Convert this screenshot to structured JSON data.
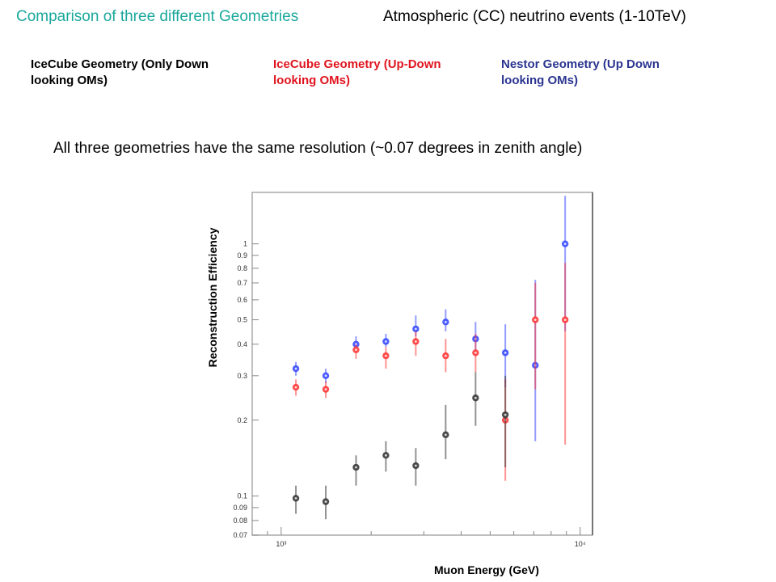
{
  "header": {
    "title_left": "Comparison of three different Geometries",
    "title_right": "Atmospheric (CC) neutrino events (1-10TeV)",
    "title_left_color": "#1aa89c",
    "title_right_color": "#000000"
  },
  "legend": [
    {
      "label": "IceCube Geometry (Only Down looking OMs)",
      "color": "#000000"
    },
    {
      "label": "IceCube Geometry (Up-Down looking OMs)",
      "color": "#e0141e"
    },
    {
      "label": "Nestor Geometry (Up Down looking OMs)",
      "color": "#2b3590"
    }
  ],
  "subtitle": "All three geometries have the same resolution (~0.07 degrees in zenith angle)",
  "chart_data": {
    "type": "scatter",
    "xlabel": "Muon Energy (GeV)",
    "ylabel": "Reconstruction Efficiency",
    "xscale": "log",
    "yscale": "log",
    "xlim": [
      800,
      11000
    ],
    "ylim": [
      0.07,
      1.6
    ],
    "x_tick_labels": [
      "10³",
      "10⁴"
    ],
    "y_tick_labels": [
      "1",
      "0.9",
      "0.8",
      "0.7",
      "0.6",
      "0.5",
      "0.4",
      "0.3",
      "0.2",
      "0.1",
      "0.09",
      "0.08",
      "0.07"
    ],
    "y_ticks": [
      1,
      0.9,
      0.8,
      0.7,
      0.6,
      0.5,
      0.4,
      0.3,
      0.2,
      0.1,
      0.09,
      0.08,
      0.07
    ],
    "x": [
      1120,
      1410,
      1780,
      2240,
      2820,
      3550,
      4470,
      5620,
      7080,
      8910
    ],
    "series": [
      {
        "color": "#3b4dff",
        "values": [
          0.32,
          0.3,
          0.4,
          0.41,
          0.46,
          0.49,
          0.42,
          0.37,
          0.33,
          1.0
        ],
        "err_low": [
          0.3,
          0.28,
          0.38,
          0.39,
          0.43,
          0.45,
          0.36,
          0.27,
          0.165,
          0.45
        ],
        "err_high": [
          0.34,
          0.32,
          0.43,
          0.44,
          0.52,
          0.55,
          0.49,
          0.48,
          0.72,
          1.55
        ]
      },
      {
        "color": "#ff3b3b",
        "values": [
          0.27,
          0.265,
          0.38,
          0.36,
          0.41,
          0.36,
          0.37,
          0.2,
          0.5,
          0.5
        ],
        "err_low": [
          0.25,
          0.245,
          0.35,
          0.32,
          0.36,
          0.31,
          0.31,
          0.115,
          0.265,
          0.16
        ],
        "err_high": [
          0.29,
          0.285,
          0.4,
          0.39,
          0.45,
          0.42,
          0.44,
          0.29,
          0.7,
          0.84
        ]
      },
      {
        "color": "#3a3a3a",
        "values": [
          0.098,
          0.095,
          0.13,
          0.145,
          0.132,
          0.175,
          0.245,
          0.21,
          null,
          null
        ],
        "err_low": [
          0.085,
          0.081,
          0.11,
          0.125,
          0.11,
          0.14,
          0.19,
          0.13,
          null,
          null
        ],
        "err_high": [
          0.11,
          0.11,
          0.145,
          0.165,
          0.155,
          0.23,
          0.31,
          0.3,
          null,
          null
        ]
      }
    ]
  }
}
